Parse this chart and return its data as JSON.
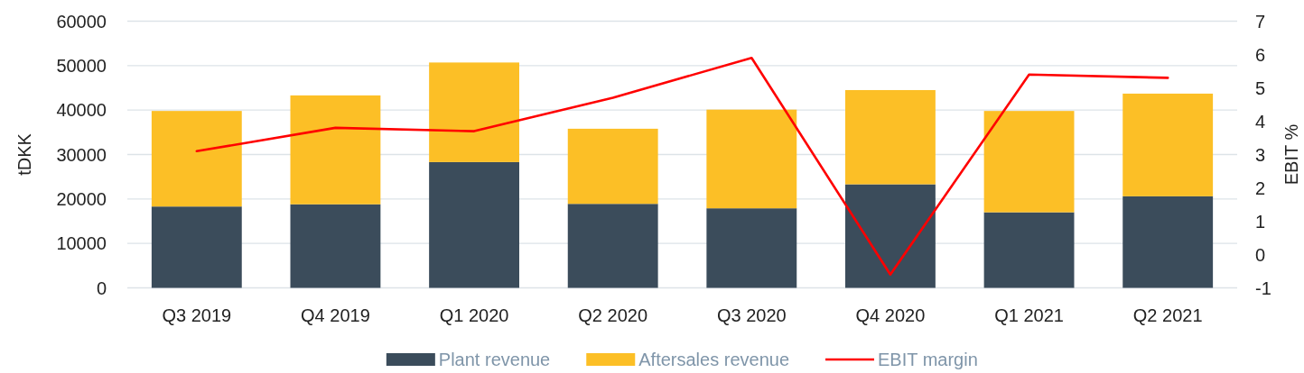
{
  "chart_data": {
    "type": "bar",
    "stacked": true,
    "categories": [
      "Q3 2019",
      "Q4 2019",
      "Q1 2020",
      "Q2 2020",
      "Q3 2020",
      "Q4 2020",
      "Q1 2021",
      "Q2 2021"
    ],
    "series": [
      {
        "name": "Plant revenue",
        "color": "#3b4c5b",
        "values": [
          18300,
          18800,
          28300,
          18900,
          17900,
          23300,
          17000,
          20600
        ]
      },
      {
        "name": "Aftersales revenue",
        "color": "#fcbf26",
        "values": [
          21500,
          24500,
          22400,
          16900,
          22200,
          21200,
          22800,
          23100
        ]
      },
      {
        "name": "EBIT margin",
        "color": "#ff0000",
        "type": "line",
        "axis": "y2",
        "values": [
          3.1,
          3.8,
          3.7,
          4.7,
          5.9,
          -0.6,
          5.4,
          5.3
        ]
      }
    ],
    "ylabel": "tDKK",
    "y2label": "EBIT %",
    "ylim": [
      0,
      60000
    ],
    "yticks": [
      0,
      10000,
      20000,
      30000,
      40000,
      50000,
      60000
    ],
    "y2lim": [
      -1,
      7
    ],
    "y2ticks": [
      -1,
      0,
      1,
      2,
      3,
      4,
      5,
      6,
      7
    ],
    "grid": "y",
    "legend": "bottom"
  }
}
